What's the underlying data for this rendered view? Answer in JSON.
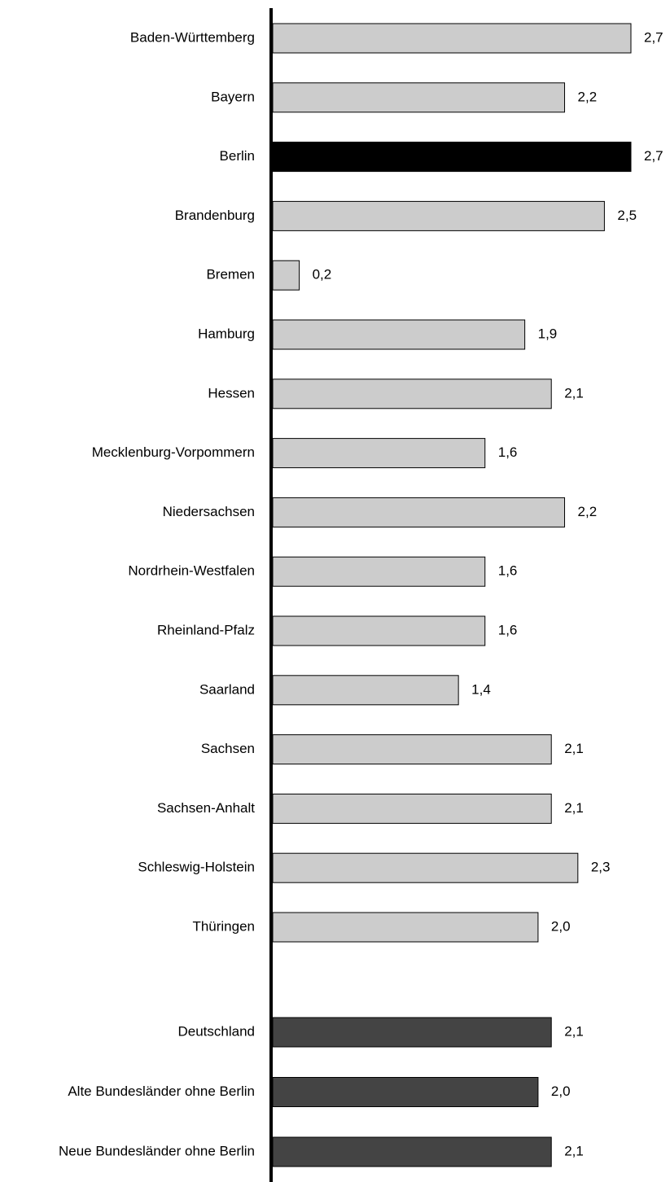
{
  "chart_data": {
    "type": "bar",
    "orientation": "horizontal",
    "title": "",
    "xlabel": "",
    "ylabel": "",
    "xlim": [
      0,
      2.7
    ],
    "grid": false,
    "legend": "none",
    "colors": {
      "default": "#cccccc",
      "highlight": "#000000",
      "aggregate": "#444444",
      "outline": "#000000",
      "axis": "#000000"
    },
    "categories": [
      "Baden-Württemberg",
      "Bayern",
      "Berlin",
      "Brandenburg",
      "Bremen",
      "Hamburg",
      "Hessen",
      "Mecklenburg-Vorpommern",
      "Niedersachsen",
      "Nordrhein-Westfalen",
      "Rheinland-Pfalz",
      "Saarland",
      "Sachsen",
      "Sachsen-Anhalt",
      "Schleswig-Holstein",
      "Thüringen",
      "Deutschland",
      "Alte Bundesländer ohne Berlin",
      "Neue Bundesländer ohne Berlin"
    ],
    "values": [
      2.7,
      2.2,
      2.7,
      2.5,
      0.2,
      1.9,
      2.1,
      1.6,
      2.2,
      1.6,
      1.6,
      1.4,
      2.1,
      2.1,
      2.3,
      2.0,
      2.1,
      2.0,
      2.1
    ],
    "value_labels": [
      "2,7",
      "2,2",
      "2,7",
      "2,5",
      "0,2",
      "1,9",
      "2,1",
      "1,6",
      "2,2",
      "1,6",
      "1,6",
      "1,4",
      "2,1",
      "2,1",
      "2,3",
      "2,0",
      "2,1",
      "2,0",
      "2,1"
    ],
    "groups": [
      "state",
      "state",
      "highlight",
      "state",
      "state",
      "state",
      "state",
      "state",
      "state",
      "state",
      "state",
      "state",
      "state",
      "state",
      "state",
      "state",
      "aggregate",
      "aggregate",
      "aggregate"
    ]
  }
}
